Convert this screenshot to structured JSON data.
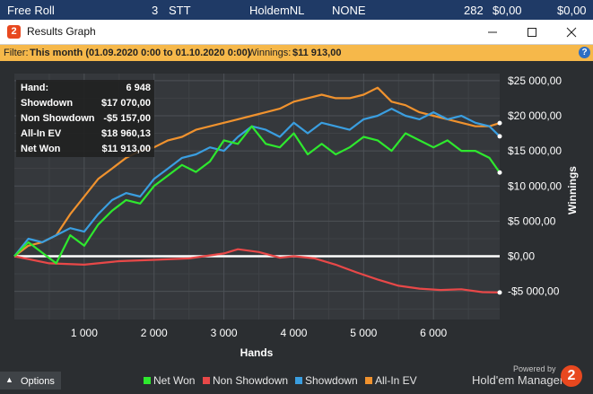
{
  "background_row": {
    "name": "Free Roll",
    "count": "3",
    "type": "STT",
    "game": "HoldemNL",
    "limit": "NONE",
    "hands": "282",
    "col7": "$0,00",
    "col8": "$0,00"
  },
  "window": {
    "title": "Results Graph",
    "icon_label": "2",
    "controls": [
      "minimize-icon",
      "maximize-icon",
      "close-icon"
    ]
  },
  "filter": {
    "prefix": "Filter:",
    "range": "This month (01.09.2020 0:00 to 01.10.2020 0:00)",
    "winnings_label": "Winnings:",
    "winnings_value": "$11 913,00",
    "help_icon": "?"
  },
  "stats": [
    {
      "label": "Hand:",
      "value": "6 948"
    },
    {
      "label": "Showdown",
      "value": "$17 070,00"
    },
    {
      "label": "Non Showdown",
      "value": "-$5 157,00"
    },
    {
      "label": "All-In EV",
      "value": "$18 960,13"
    },
    {
      "label": "Net Won",
      "value": "$11 913,00"
    }
  ],
  "chart_data": {
    "type": "line",
    "xlabel": "Hands",
    "ylabel": "Winnings",
    "xlim": [
      0,
      6948
    ],
    "ylim": [
      -9000,
      26000
    ],
    "xticks": [
      1000,
      2000,
      3000,
      4000,
      5000,
      6000
    ],
    "xtick_labels": [
      "1 000",
      "2 000",
      "3 000",
      "4 000",
      "5 000",
      "6 000"
    ],
    "yticks": [
      -5000,
      0,
      5000,
      10000,
      15000,
      20000,
      25000
    ],
    "ytick_labels": [
      "-$5 000,00",
      "$0,00",
      "$5 000,00",
      "$10 000,00",
      "$15 000,00",
      "$20 000,00",
      "$25 000,00"
    ],
    "grid": true,
    "legend_position": "bottom",
    "zero_line_color": "#ffffff",
    "series": [
      {
        "name": "Net Won",
        "color": "#2ee82e",
        "x": [
          0,
          200,
          400,
          600,
          800,
          1000,
          1200,
          1400,
          1600,
          1800,
          2000,
          2200,
          2400,
          2600,
          2800,
          3000,
          3200,
          3400,
          3600,
          3800,
          4000,
          4200,
          4400,
          4600,
          4800,
          5000,
          5200,
          5400,
          5600,
          5800,
          6000,
          6200,
          6400,
          6600,
          6800,
          6948
        ],
        "y": [
          0,
          2000,
          500,
          -1000,
          3000,
          1500,
          4500,
          6500,
          8000,
          7500,
          10000,
          11500,
          13000,
          12000,
          13500,
          16500,
          16000,
          18500,
          16000,
          15500,
          17500,
          14500,
          16000,
          14500,
          15500,
          17000,
          16500,
          15000,
          17500,
          16500,
          15500,
          16500,
          15000,
          15000,
          14000,
          11913
        ]
      },
      {
        "name": "Non Showdown",
        "color": "#e84848",
        "x": [
          0,
          500,
          1000,
          1500,
          2000,
          2500,
          3000,
          3200,
          3500,
          3800,
          4000,
          4300,
          4600,
          4900,
          5200,
          5500,
          5800,
          6100,
          6400,
          6700,
          6948
        ],
        "y": [
          0,
          -1000,
          -1200,
          -700,
          -500,
          -300,
          400,
          1000,
          600,
          -200,
          0,
          -300,
          -1200,
          -2300,
          -3300,
          -4200,
          -4600,
          -4800,
          -4700,
          -5100,
          -5157
        ]
      },
      {
        "name": "Showdown",
        "color": "#3a9ee0",
        "x": [
          0,
          200,
          400,
          600,
          800,
          1000,
          1200,
          1400,
          1600,
          1800,
          2000,
          2200,
          2400,
          2600,
          2800,
          3000,
          3200,
          3400,
          3600,
          3800,
          4000,
          4200,
          4400,
          4600,
          4800,
          5000,
          5200,
          5400,
          5600,
          5800,
          6000,
          6200,
          6400,
          6600,
          6800,
          6948
        ],
        "y": [
          0,
          2500,
          2000,
          3000,
          4000,
          3500,
          6000,
          8000,
          9000,
          8500,
          11000,
          12500,
          14000,
          14500,
          15500,
          15000,
          17000,
          18500,
          18000,
          17000,
          19000,
          17500,
          19000,
          18500,
          18000,
          19500,
          20000,
          21000,
          20000,
          19500,
          20500,
          19500,
          20000,
          19000,
          18500,
          17070
        ]
      },
      {
        "name": "All-In EV",
        "color": "#f0922e",
        "x": [
          0,
          200,
          400,
          600,
          800,
          1000,
          1200,
          1400,
          1600,
          1800,
          2000,
          2200,
          2400,
          2600,
          2800,
          3000,
          3200,
          3400,
          3600,
          3800,
          4000,
          4200,
          4400,
          4600,
          4800,
          5000,
          5200,
          5400,
          5600,
          5800,
          6000,
          6200,
          6400,
          6600,
          6800,
          6948
        ],
        "y": [
          0,
          1500,
          2000,
          3000,
          6000,
          8500,
          11000,
          12500,
          14000,
          15000,
          15500,
          16500,
          17000,
          18000,
          18500,
          19000,
          19500,
          20000,
          20500,
          21000,
          22000,
          22500,
          23000,
          22500,
          22500,
          23000,
          24000,
          22000,
          21500,
          20500,
          20000,
          19500,
          19000,
          18500,
          18500,
          18960
        ]
      }
    ]
  },
  "toolbar": {
    "options_label": "Options",
    "caret": "▲"
  },
  "branding": {
    "powered_by": "Powered by",
    "name": "Hold'em Manager",
    "logo_text": "2"
  }
}
